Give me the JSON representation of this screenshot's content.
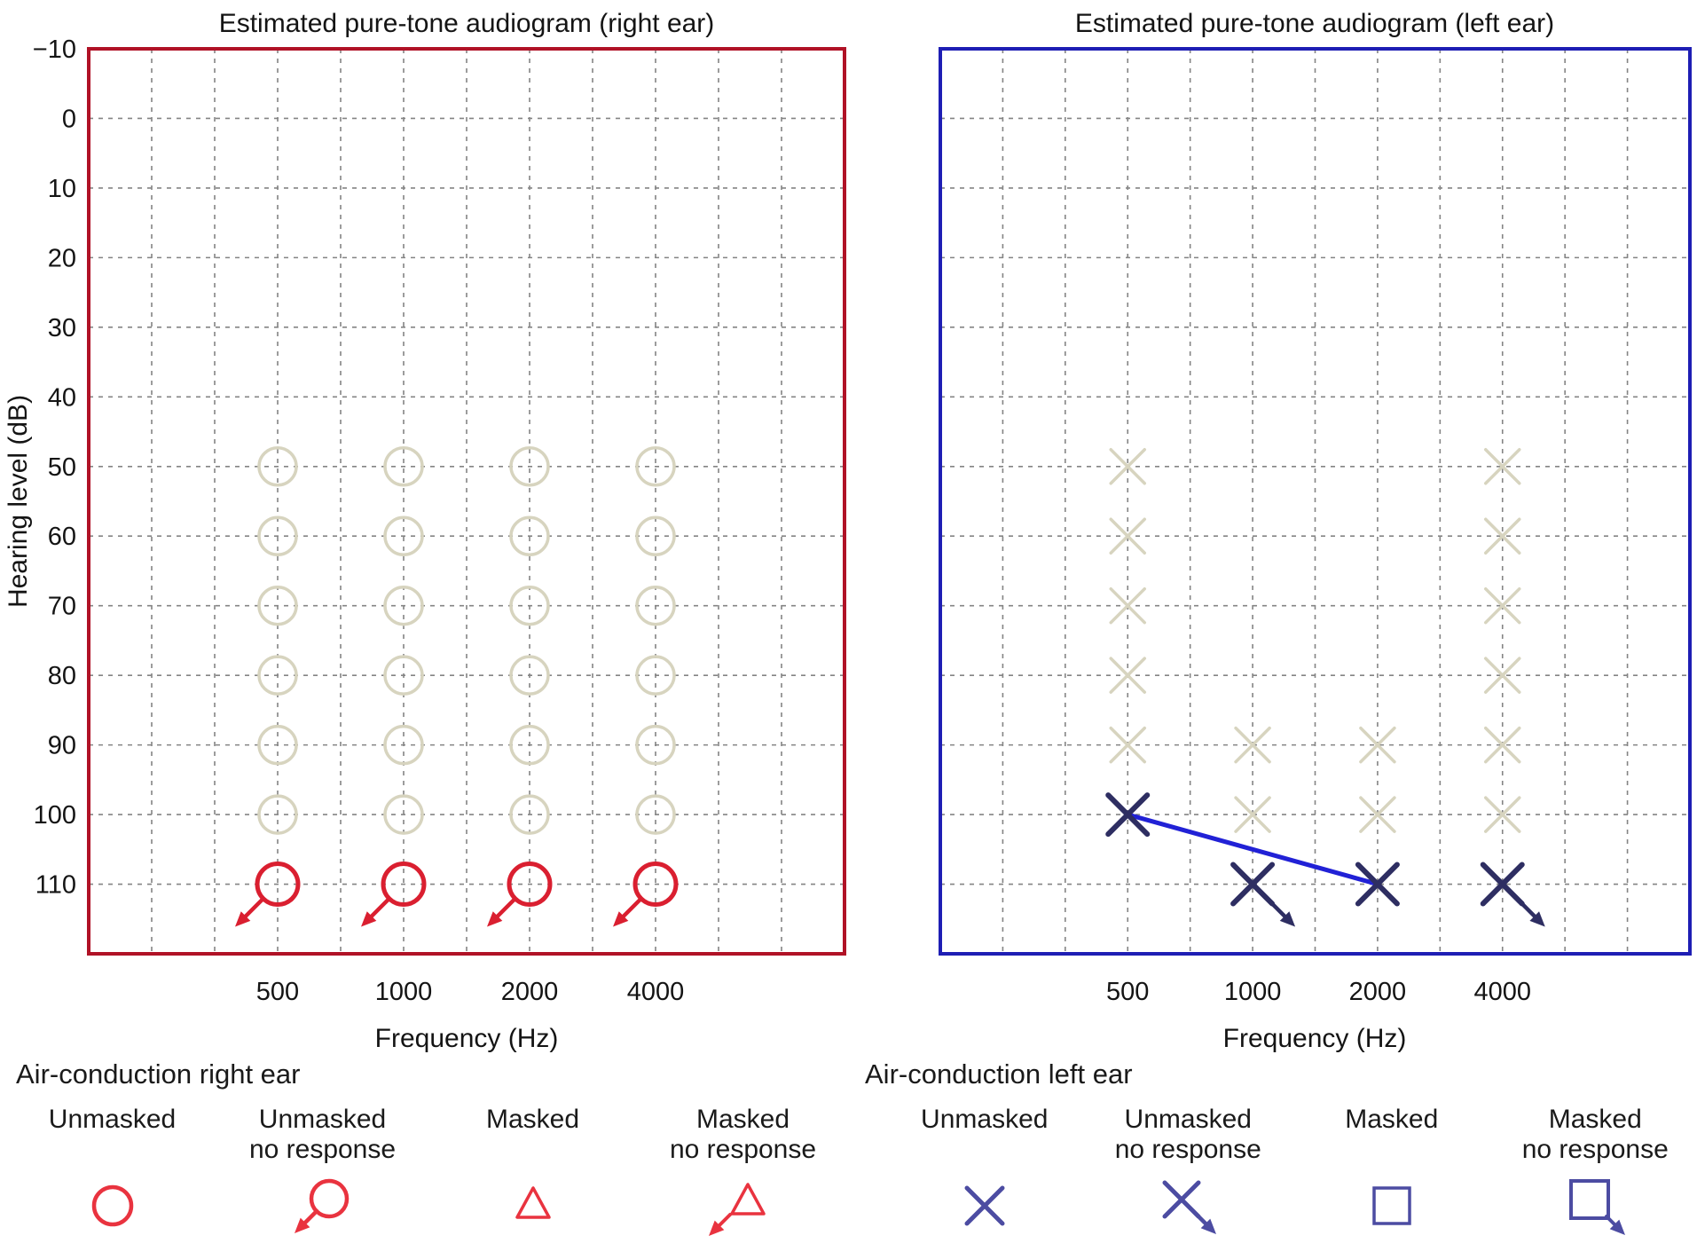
{
  "figure": {
    "background": "#ffffff"
  },
  "chart_data": [
    {
      "type": "scatter",
      "ear": "right",
      "title": "Estimated pure-tone audiogram (right ear)",
      "xlabel": "Frequency (Hz)",
      "ylabel": "Hearing level (dB)",
      "x_categories": [
        "500",
        "1000",
        "2000",
        "4000"
      ],
      "y_ticks": [
        -10,
        0,
        10,
        20,
        30,
        40,
        50,
        60,
        70,
        80,
        90,
        100,
        110
      ],
      "y_range": [
        -10,
        120
      ],
      "show_y_tick_labels": true,
      "grid": true,
      "legend_position": "below",
      "border_color": "#b01226",
      "grid_color": "#848484",
      "marker": "circle",
      "ghost_color": "#d7d4bf",
      "bold_color": "#da1f30",
      "line_color": "#da1f30",
      "series": [
        {
          "name": "tested-levels-faded-circles",
          "style": "ghost",
          "points": [
            [
              "500",
              50
            ],
            [
              "500",
              60
            ],
            [
              "500",
              70
            ],
            [
              "500",
              80
            ],
            [
              "500",
              90
            ],
            [
              "500",
              100
            ],
            [
              "1000",
              50
            ],
            [
              "1000",
              60
            ],
            [
              "1000",
              70
            ],
            [
              "1000",
              80
            ],
            [
              "1000",
              90
            ],
            [
              "1000",
              100
            ],
            [
              "2000",
              50
            ],
            [
              "2000",
              60
            ],
            [
              "2000",
              70
            ],
            [
              "2000",
              80
            ],
            [
              "2000",
              90
            ],
            [
              "2000",
              100
            ],
            [
              "4000",
              50
            ],
            [
              "4000",
              60
            ],
            [
              "4000",
              70
            ],
            [
              "4000",
              80
            ],
            [
              "4000",
              90
            ],
            [
              "4000",
              100
            ]
          ]
        },
        {
          "name": "unmasked-no-response-110dB",
          "style": "bold",
          "points": [
            {
              "f": "500",
              "db": 110,
              "arrow": "down-left"
            },
            {
              "f": "1000",
              "db": 110,
              "arrow": "down-left"
            },
            {
              "f": "2000",
              "db": 110,
              "arrow": "down-left"
            },
            {
              "f": "4000",
              "db": 110,
              "arrow": "down-left"
            }
          ]
        }
      ],
      "connect": []
    },
    {
      "type": "scatter",
      "ear": "left",
      "title": "Estimated pure-tone audiogram (left ear)",
      "xlabel": "Frequency (Hz)",
      "ylabel": "",
      "x_categories": [
        "500",
        "1000",
        "2000",
        "4000"
      ],
      "y_ticks": [
        -10,
        0,
        10,
        20,
        30,
        40,
        50,
        60,
        70,
        80,
        90,
        100,
        110
      ],
      "y_range": [
        -10,
        120
      ],
      "show_y_tick_labels": false,
      "grid": true,
      "legend_position": "below",
      "border_color": "#1e1eb4",
      "grid_color": "#848484",
      "marker": "x",
      "ghost_color": "#d7d4bf",
      "bold_color": "#2e2e62",
      "line_color": "#2121d6",
      "series": [
        {
          "name": "tested-levels-faded-x",
          "style": "ghost",
          "points": [
            [
              "500",
              50
            ],
            [
              "500",
              60
            ],
            [
              "500",
              70
            ],
            [
              "500",
              80
            ],
            [
              "500",
              90
            ],
            [
              "1000",
              90
            ],
            [
              "1000",
              100
            ],
            [
              "2000",
              90
            ],
            [
              "2000",
              100
            ],
            [
              "4000",
              50
            ],
            [
              "4000",
              60
            ],
            [
              "4000",
              70
            ],
            [
              "4000",
              80
            ],
            [
              "4000",
              90
            ],
            [
              "4000",
              100
            ]
          ]
        },
        {
          "name": "estimated-thresholds",
          "style": "bold",
          "points": [
            {
              "f": "500",
              "db": 100
            },
            {
              "f": "1000",
              "db": 110,
              "arrow": "down-right"
            },
            {
              "f": "2000",
              "db": 110
            },
            {
              "f": "4000",
              "db": 110,
              "arrow": "down-right"
            }
          ]
        }
      ],
      "connect": [
        {
          "from": [
            "500",
            100
          ],
          "to": [
            "2000",
            110
          ]
        }
      ]
    }
  ],
  "legend": {
    "right_ear": {
      "heading": "Air-conduction right ear",
      "color": "#e9333f",
      "items": [
        {
          "label1": "Unmasked",
          "label2": "",
          "symbol": "circle"
        },
        {
          "label1": "Unmasked",
          "label2": "no response",
          "symbol": "circle-arrow"
        },
        {
          "label1": "Masked",
          "label2": "",
          "symbol": "triangle"
        },
        {
          "label1": "Masked",
          "label2": "no response",
          "symbol": "triangle-arrow"
        }
      ]
    },
    "left_ear": {
      "heading": "Air-conduction left ear",
      "color": "#4c4ca2",
      "items": [
        {
          "label1": "Unmasked",
          "label2": "",
          "symbol": "x"
        },
        {
          "label1": "Unmasked",
          "label2": "no response",
          "symbol": "x-arrow"
        },
        {
          "label1": "Masked",
          "label2": "",
          "symbol": "square"
        },
        {
          "label1": "Masked",
          "label2": "no response",
          "symbol": "square-arrow"
        }
      ]
    }
  }
}
